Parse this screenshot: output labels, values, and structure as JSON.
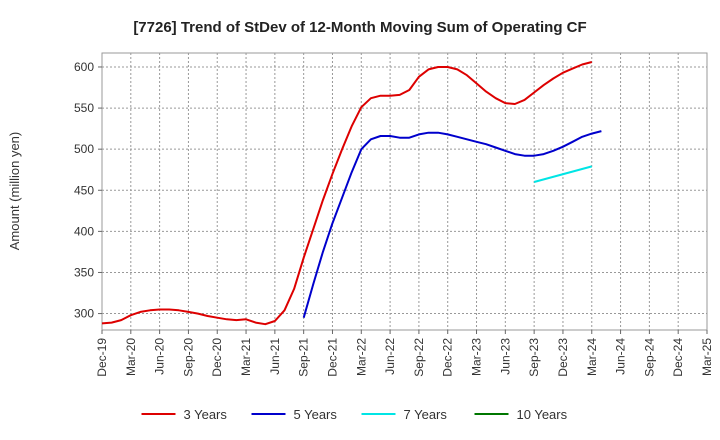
{
  "chart_data": {
    "type": "line",
    "title": "[7726]  Trend of StDev of 12-Month Moving Sum of Operating CF",
    "ylabel": "Amount (million yen)",
    "xlabel": "",
    "ylim": [
      280,
      617
    ],
    "yticks": [
      300,
      350,
      400,
      450,
      500,
      550,
      600
    ],
    "x_ticks": [
      "Dec-19",
      "Mar-20",
      "Jun-20",
      "Sep-20",
      "Dec-20",
      "Mar-21",
      "Jun-21",
      "Sep-21",
      "Dec-21",
      "Mar-22",
      "Jun-22",
      "Sep-22",
      "Dec-22",
      "Mar-23",
      "Jun-23",
      "Sep-23",
      "Dec-23",
      "Mar-24",
      "Jun-24",
      "Sep-24",
      "Dec-24",
      "Mar-25"
    ],
    "grid": true,
    "legend_position": "bottom",
    "series": [
      {
        "name": "3 Years",
        "color": "#dd0000",
        "points": [
          [
            "Dec-19",
            288
          ],
          [
            "Jan-20",
            289
          ],
          [
            "Feb-20",
            292
          ],
          [
            "Mar-20",
            298
          ],
          [
            "Apr-20",
            302
          ],
          [
            "May-20",
            304
          ],
          [
            "Jun-20",
            305
          ],
          [
            "Jul-20",
            305
          ],
          [
            "Aug-20",
            304
          ],
          [
            "Sep-20",
            302
          ],
          [
            "Oct-20",
            300
          ],
          [
            "Nov-20",
            297
          ],
          [
            "Dec-20",
            295
          ],
          [
            "Jan-21",
            293
          ],
          [
            "Feb-21",
            292
          ],
          [
            "Mar-21",
            293
          ],
          [
            "Apr-21",
            289
          ],
          [
            "May-21",
            287
          ],
          [
            "Jun-21",
            291
          ],
          [
            "Jul-21",
            304
          ],
          [
            "Aug-21",
            330
          ],
          [
            "Sep-21",
            368
          ],
          [
            "Oct-21",
            403
          ],
          [
            "Nov-21",
            438
          ],
          [
            "Dec-21",
            470
          ],
          [
            "Jan-22",
            500
          ],
          [
            "Feb-22",
            528
          ],
          [
            "Mar-22",
            551
          ],
          [
            "Apr-22",
            562
          ],
          [
            "May-22",
            565
          ],
          [
            "Jun-22",
            565
          ],
          [
            "Jul-22",
            566
          ],
          [
            "Aug-22",
            572
          ],
          [
            "Sep-22",
            588
          ],
          [
            "Oct-22",
            597
          ],
          [
            "Nov-22",
            600
          ],
          [
            "Dec-22",
            600
          ],
          [
            "Jan-23",
            597
          ],
          [
            "Feb-23",
            590
          ],
          [
            "Mar-23",
            580
          ],
          [
            "Apr-23",
            570
          ],
          [
            "May-23",
            562
          ],
          [
            "Jun-23",
            556
          ],
          [
            "Jul-23",
            555
          ],
          [
            "Aug-23",
            560
          ],
          [
            "Sep-23",
            569
          ],
          [
            "Oct-23",
            578
          ],
          [
            "Nov-23",
            586
          ],
          [
            "Dec-23",
            593
          ],
          [
            "Jan-24",
            598
          ],
          [
            "Feb-24",
            603
          ],
          [
            "Mar-24",
            606
          ]
        ]
      },
      {
        "name": "5 Years",
        "color": "#0000cc",
        "points": [
          [
            "Sep-21",
            295
          ],
          [
            "Oct-21",
            336
          ],
          [
            "Nov-21",
            375
          ],
          [
            "Dec-21",
            410
          ],
          [
            "Jan-22",
            441
          ],
          [
            "Feb-22",
            472
          ],
          [
            "Mar-22",
            500
          ],
          [
            "Apr-22",
            512
          ],
          [
            "May-22",
            516
          ],
          [
            "Jun-22",
            516
          ],
          [
            "Jul-22",
            514
          ],
          [
            "Aug-22",
            514
          ],
          [
            "Sep-22",
            518
          ],
          [
            "Oct-22",
            520
          ],
          [
            "Nov-22",
            520
          ],
          [
            "Dec-22",
            518
          ],
          [
            "Jan-23",
            515
          ],
          [
            "Feb-23",
            512
          ],
          [
            "Mar-23",
            509
          ],
          [
            "Apr-23",
            506
          ],
          [
            "May-23",
            502
          ],
          [
            "Jun-23",
            498
          ],
          [
            "Jul-23",
            494
          ],
          [
            "Aug-23",
            492
          ],
          [
            "Sep-23",
            492
          ],
          [
            "Oct-23",
            494
          ],
          [
            "Nov-23",
            498
          ],
          [
            "Dec-23",
            503
          ],
          [
            "Jan-24",
            509
          ],
          [
            "Feb-24",
            515
          ],
          [
            "Mar-24",
            519
          ],
          [
            "Apr-24",
            522
          ]
        ]
      },
      {
        "name": "7 Years",
        "color": "#00e5e5",
        "points": [
          [
            "Sep-23",
            460
          ],
          [
            "Mar-24",
            479
          ]
        ]
      },
      {
        "name": "10 Years",
        "color": "#007700",
        "points": []
      }
    ]
  }
}
